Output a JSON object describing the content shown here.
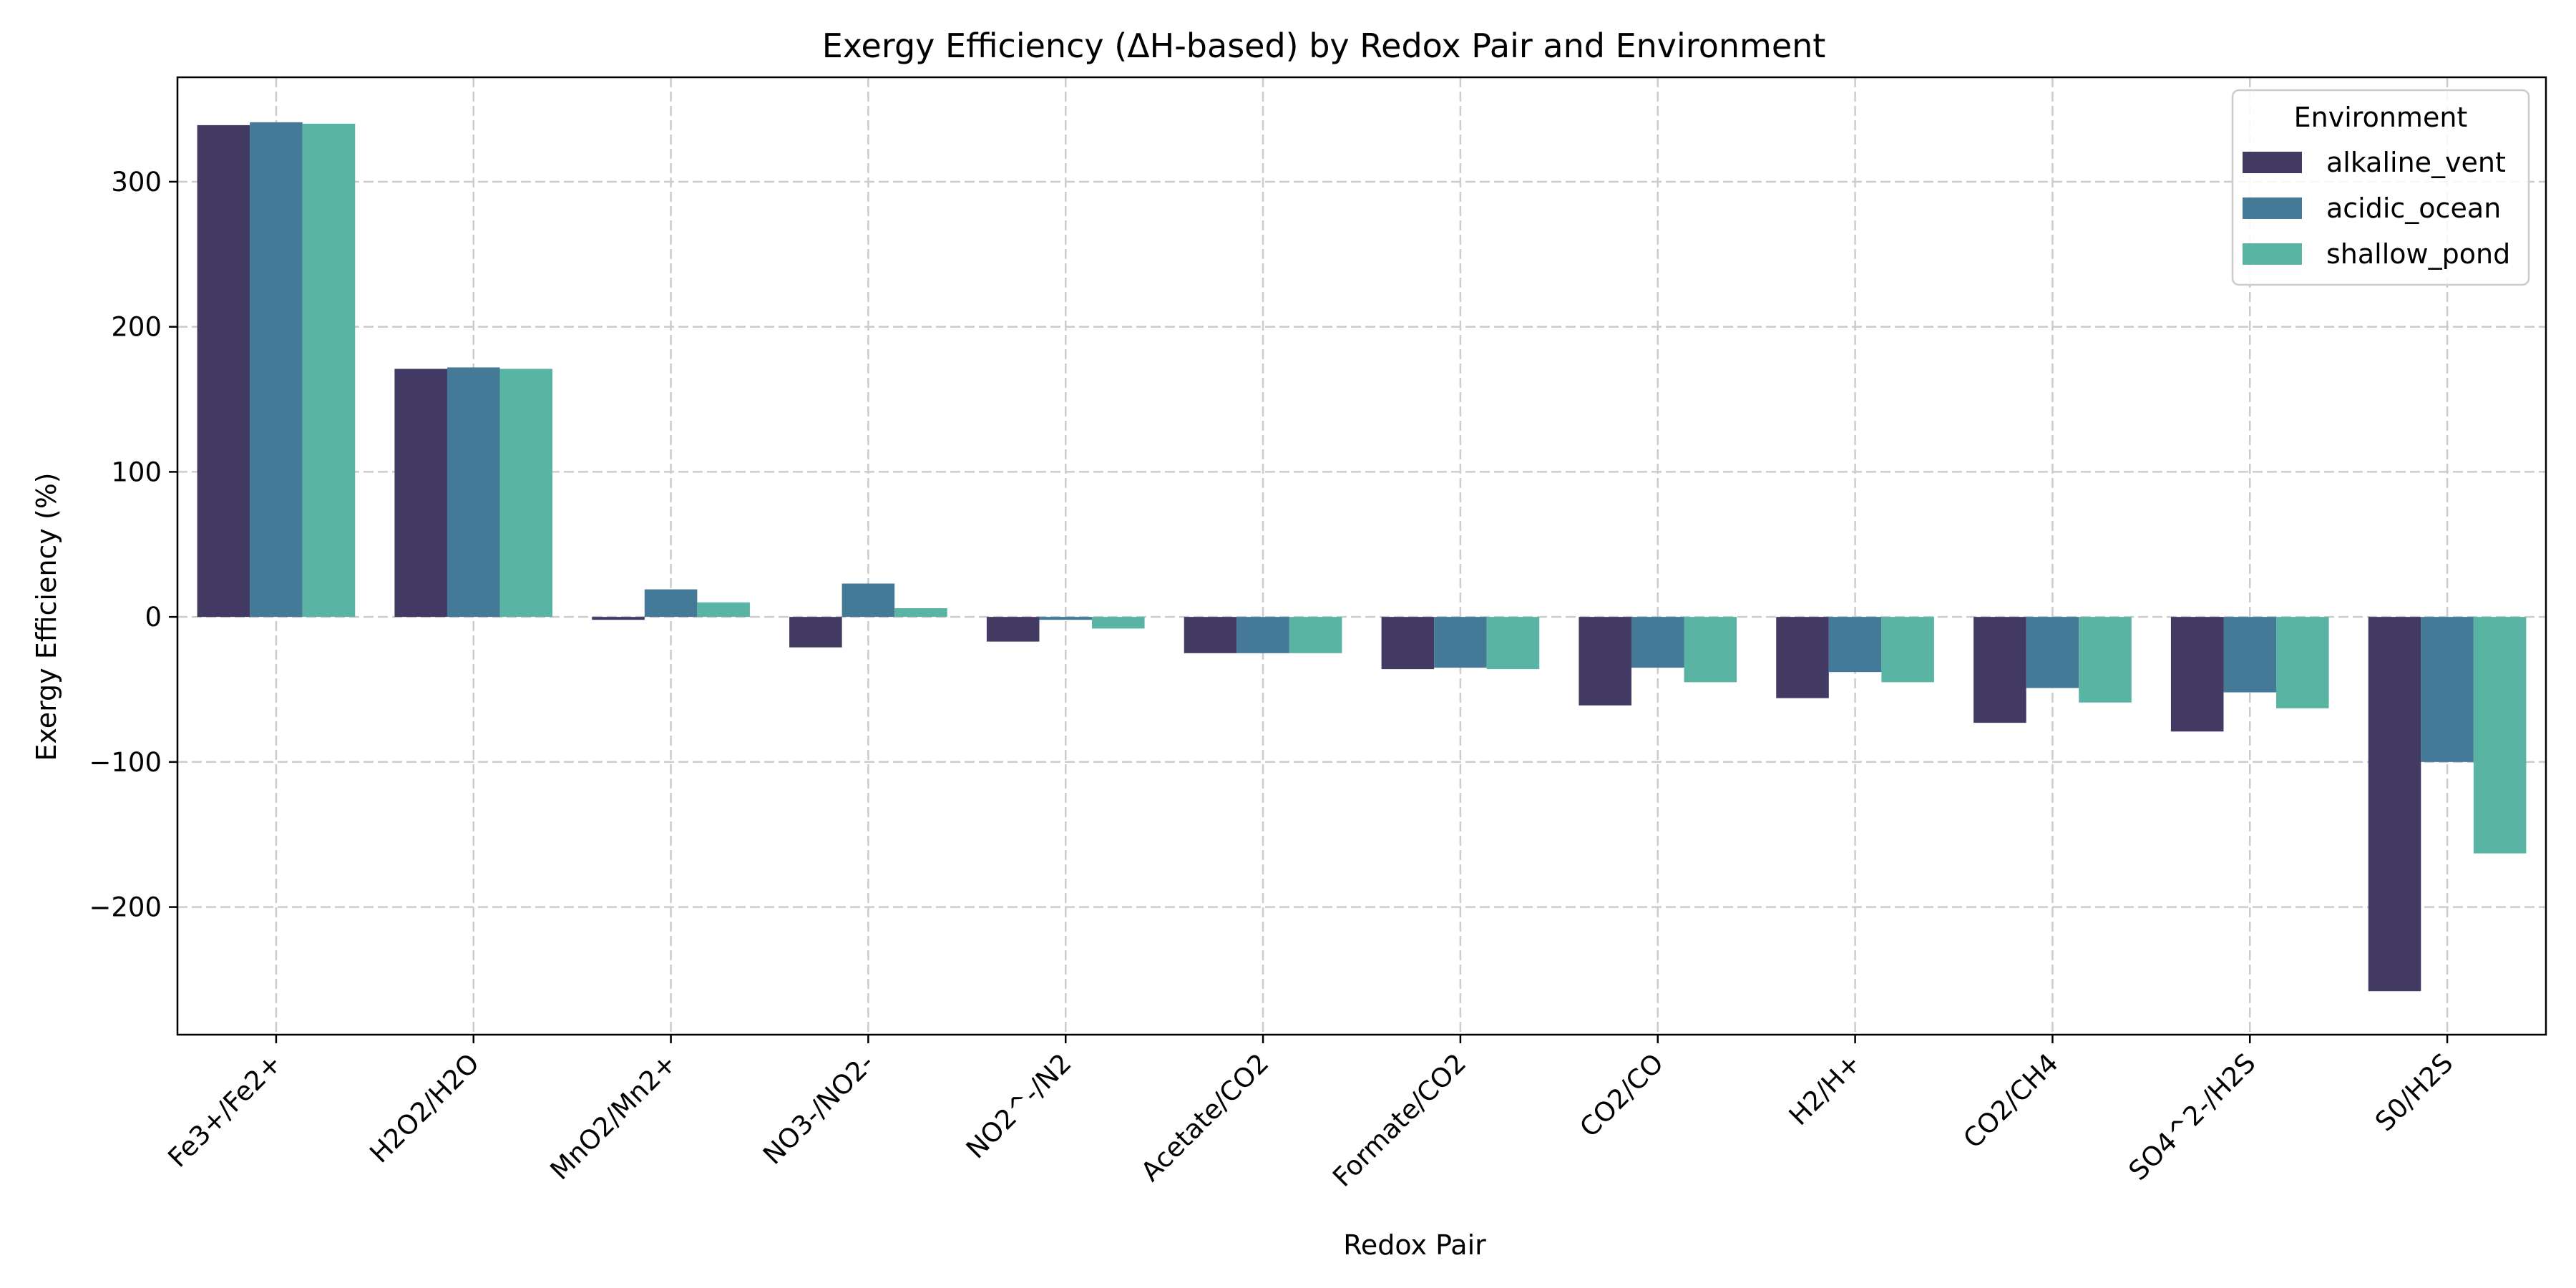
{
  "chart_data": {
    "type": "bar",
    "title": "Exergy Efficiency (ΔH-based) by Redox Pair and Environment",
    "xlabel": "Redox Pair",
    "ylabel": "Exergy Efficiency (%)",
    "ylim": [
      -288,
      372
    ],
    "yticks": [
      -200,
      -100,
      0,
      100,
      200,
      300
    ],
    "ytick_labels": [
      "−200",
      "−100",
      "0",
      "100",
      "200",
      "300"
    ],
    "grid": true,
    "legend_title": "Environment",
    "legend_position": "top-right",
    "categories": [
      "Fe3+/Fe2+",
      "H2O2/H2O",
      "MnO2/Mn2+",
      "NO3-/NO2-",
      "NO2^-/N2",
      "Acetate/CO2",
      "Formate/CO2",
      "CO2/CO",
      "H2/H+",
      "CO2/CH4",
      "SO4^2-/H2S",
      "S0/H2S"
    ],
    "series": [
      {
        "name": "alkaline_vent",
        "color": "#433a63",
        "values": [
          339,
          171,
          -2,
          -21,
          -17,
          -25,
          -36,
          -61,
          -56,
          -73,
          -79,
          -258
        ]
      },
      {
        "name": "acidic_ocean",
        "color": "#447998",
        "values": [
          341,
          172,
          19,
          23,
          -2,
          -25,
          -35,
          -35,
          -38,
          -49,
          -52,
          -100
        ]
      },
      {
        "name": "shallow_pond",
        "color": "#59b4a3",
        "values": [
          340,
          171,
          10,
          6,
          -8,
          -25,
          -36,
          -45,
          -45,
          -59,
          -63,
          -163
        ]
      }
    ]
  }
}
